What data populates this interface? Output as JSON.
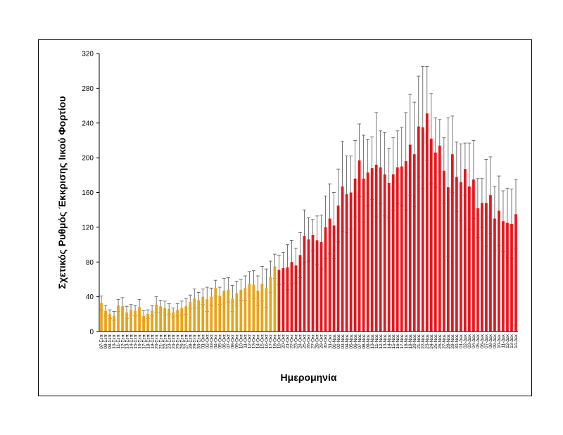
{
  "chart_data": {
    "type": "bar",
    "xlabel": "Ημερομηνία",
    "ylabel": "Σχετικός Ρυθμός Έκκρισης Ιικού Φορτίου",
    "ylim": [
      0,
      320
    ],
    "yticks": [
      0,
      40,
      80,
      120,
      160,
      200,
      240,
      280,
      320
    ],
    "grid": false,
    "legend": "none",
    "colors": {
      "early": "#e8a317",
      "late": "#e5161c",
      "error_bar": "#555555"
    },
    "categories": [
      "07-Σεπ",
      "08-Σεπ",
      "09-Σεπ",
      "10-Σεπ",
      "11-Σεπ",
      "12-Σεπ",
      "13-Σεπ",
      "14-Σεπ",
      "15-Σεπ",
      "16-Σεπ",
      "17-Σεπ",
      "18-Σεπ",
      "19-Σεπ",
      "20-Σεπ",
      "21-Σεπ",
      "22-Σεπ",
      "23-Σεπ",
      "24-Σεπ",
      "25-Σεπ",
      "26-Σεπ",
      "27-Σεπ",
      "28-Σεπ",
      "29-Σεπ",
      "30-Σεπ",
      "01-Οκτ",
      "02-Οκτ",
      "03-Οκτ",
      "04-Οκτ",
      "05-Οκτ",
      "06-Οκτ",
      "07-Οκτ",
      "08-Οκτ",
      "09-Οκτ",
      "10-Οκτ",
      "11-Οκτ",
      "12-Οκτ",
      "13-Οκτ",
      "14-Οκτ",
      "15-Οκτ",
      "16-Οκτ",
      "17-Οκτ",
      "18-Οκτ",
      "19-Οκτ",
      "20-Οκτ",
      "21-Οκτ",
      "22-Οκτ",
      "23-Οκτ",
      "24-Οκτ",
      "25-Οκτ",
      "26-Οκτ",
      "27-Οκτ",
      "28-Οκτ",
      "29-Οκτ",
      "30-Οκτ",
      "31-Οκτ",
      "01-Νοε",
      "02-Νοε",
      "03-Νοε",
      "04-Νοε",
      "05-Νοε",
      "06-Νοε",
      "07-Νοε",
      "08-Νοε",
      "09-Νοε",
      "10-Νοε",
      "11-Νοε",
      "12-Νοε",
      "13-Νοε",
      "14-Νοε",
      "15-Νοε",
      "16-Νοε",
      "17-Νοε",
      "18-Νοε",
      "19-Νοε",
      "20-Νοε",
      "21-Νοε",
      "22-Νοε",
      "23-Νοε",
      "24-Νοε",
      "25-Νοε",
      "26-Νοε",
      "27-Νοε",
      "28-Νοε",
      "29-Νοε",
      "30-Νοε",
      "01-Δεκ",
      "02-Δεκ",
      "03-Δεκ",
      "04-Δεκ",
      "05-Δεκ",
      "06-Δεκ",
      "07-Δεκ",
      "08-Δεκ",
      "09-Δεκ",
      "10-Δεκ",
      "11-Δεκ",
      "12-Δεκ",
      "13-Δεκ",
      "14-Δεκ"
    ],
    "values": [
      33,
      24,
      20,
      18,
      30,
      29,
      22,
      25,
      24,
      28,
      18,
      20,
      24,
      31,
      29,
      27,
      26,
      22,
      25,
      27,
      29,
      34,
      38,
      36,
      40,
      37,
      40,
      50,
      41,
      47,
      48,
      38,
      44,
      48,
      50,
      55,
      54,
      47,
      55,
      50,
      63,
      75,
      71,
      73,
      74,
      80,
      76,
      88,
      110,
      106,
      111,
      105,
      103,
      120,
      130,
      122,
      145,
      167,
      158,
      160,
      176,
      197,
      176,
      183,
      188,
      192,
      189,
      181,
      171,
      181,
      189,
      190,
      196,
      215,
      204,
      236,
      235,
      251,
      222,
      206,
      214,
      185,
      166,
      204,
      178,
      172,
      187,
      167,
      175,
      142,
      148,
      148,
      157,
      130,
      139,
      127,
      125,
      124,
      135
    ],
    "error_plus": [
      8,
      6,
      5,
      5,
      7,
      10,
      7,
      6,
      6,
      9,
      6,
      5,
      6,
      9,
      7,
      8,
      6,
      5,
      7,
      8,
      9,
      8,
      11,
      9,
      9,
      14,
      10,
      9,
      10,
      14,
      14,
      15,
      14,
      12,
      14,
      14,
      16,
      17,
      20,
      22,
      18,
      14,
      17,
      18,
      26,
      25,
      20,
      26,
      30,
      25,
      18,
      28,
      31,
      36,
      40,
      38,
      42,
      52,
      44,
      42,
      44,
      42,
      50,
      38,
      36,
      60,
      42,
      48,
      40,
      42,
      42,
      45,
      56,
      58,
      60,
      58,
      70,
      54,
      52,
      40,
      30,
      38,
      80,
      44,
      40,
      44,
      30,
      50,
      45,
      34,
      28,
      50,
      44,
      37,
      40,
      35,
      40,
      40,
      40
    ],
    "early_count": 42
  }
}
